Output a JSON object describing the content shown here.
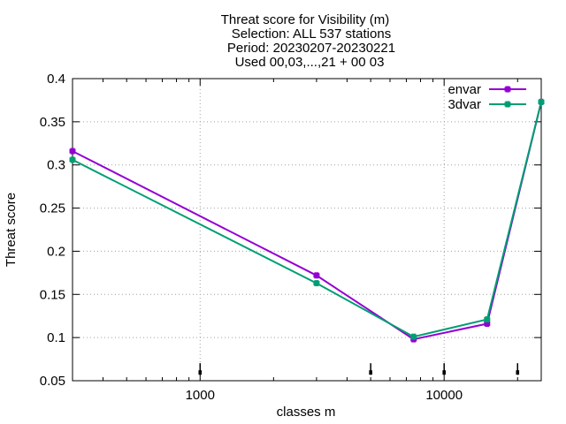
{
  "chart_data": {
    "type": "line",
    "title_lines": [
      "Threat score  for Visibility (m)",
      "Selection: ALL    537 stations",
      "Period: 20230207-20230221",
      "Used 00,03,...,21 + 00 03"
    ],
    "xlabel": "classes m",
    "ylabel": "Threat score",
    "x_scale": "log",
    "xlim": [
      300,
      25000
    ],
    "ylim": [
      0.05,
      0.4
    ],
    "x_ticks": [
      1000,
      10000
    ],
    "x_tick_labels": [
      "1000",
      "10000"
    ],
    "y_ticks": [
      0.05,
      0.1,
      0.15,
      0.2,
      0.25,
      0.3,
      0.35,
      0.4
    ],
    "y_tick_labels": [
      "0.05",
      "0.1",
      "0.15",
      "0.2",
      "0.25",
      "0.3",
      "0.35",
      "0.4"
    ],
    "grid": true,
    "legend_position": "top-right",
    "x": [
      300,
      3000,
      7500,
      15000,
      25000
    ],
    "series": [
      {
        "name": "envar",
        "color": "#9400d3",
        "values": [
          0.316,
          0.172,
          0.098,
          0.116,
          0.373
        ]
      },
      {
        "name": "3dvar",
        "color": "#009e73",
        "values": [
          0.306,
          0.163,
          0.101,
          0.121,
          0.373
        ]
      }
    ],
    "markers_x": [
      1000,
      5000,
      10000,
      20000
    ],
    "markers_y": 0.058
  }
}
